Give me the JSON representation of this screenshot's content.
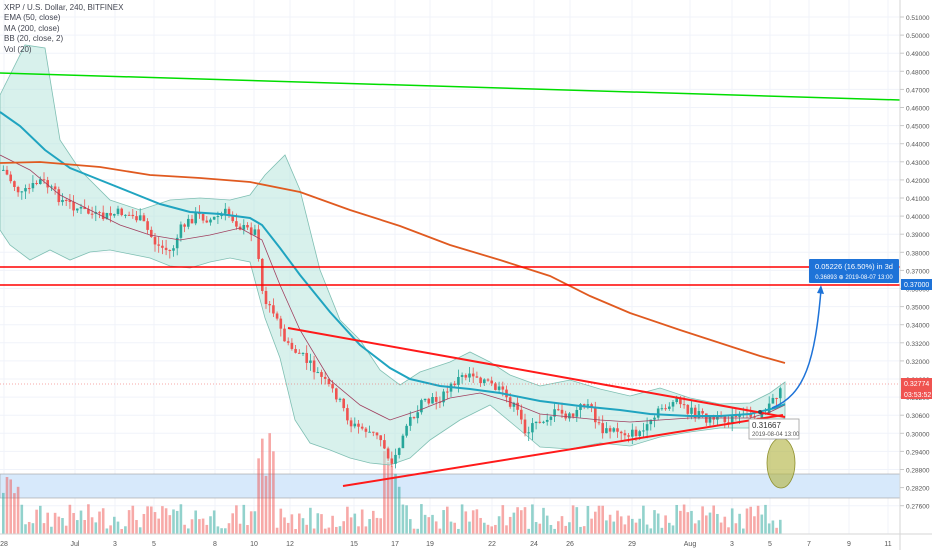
{
  "legend": {
    "symbol": "XRP / U.S. Dollar, 240, BITFINEX",
    "ema": "EMA (50, close)",
    "ma": "MA (200, close)",
    "bb": "BB (20, close, 2)",
    "vol": "Vol (20)"
  },
  "price_axis": {
    "ticks": [
      "0.51000",
      "0.50000",
      "0.49000",
      "0.48000",
      "0.47000",
      "0.46000",
      "0.45000",
      "0.44000",
      "0.43000",
      "0.42000",
      "0.41000",
      "0.40000",
      "0.39000",
      "0.38000",
      "0.37000",
      "0.36000",
      "0.35000",
      "0.34000",
      "0.33200",
      "0.32000",
      "0.31800",
      "0.31200",
      "0.30600",
      "0.30000",
      "0.29400",
      "0.28800",
      "0.28200",
      "0.27600"
    ],
    "last_price": "0.32774",
    "countdown": "03:53:52"
  },
  "time_axis": [
    "28",
    "Jul",
    "3",
    "5",
    "8",
    "10",
    "12",
    "15",
    "17",
    "19",
    "22",
    "24",
    "26",
    "29",
    "Aug",
    "3",
    "5",
    "7",
    "9",
    "11"
  ],
  "measure_label": {
    "line1": "0.05226 (16.50%) in 3d",
    "line2": "0.36893  ⊕ 2019-08-07  13:00"
  },
  "cursor_label": {
    "price": "0.31667",
    "time": "2019-08-04 13:00"
  },
  "colors": {
    "up": "#26a69a",
    "down": "#ef5350",
    "ema": "#20a4c0",
    "ma": "#e05a20",
    "bb_fill": "#b8e6dd",
    "bb_line": "#7fbfb3",
    "support": "#ff0000",
    "green_line": "#00dd00",
    "arrow": "#1e73d8"
  },
  "chart_data": {
    "type": "candlestick",
    "title": "XRP / U.S. Dollar, 240, BITFINEX",
    "indicators": [
      "EMA (50, close)",
      "MA (200, close)",
      "BB (20, close, 2)",
      "Vol (20)"
    ],
    "y_range": [
      0.27,
      0.52
    ],
    "note_series": [
      {
        "name": "EMA (50, close)",
        "points": [
          [
            "Jun 27",
            0.415
          ],
          [
            "Jul 1",
            0.395
          ],
          [
            "Jul 5",
            0.385
          ],
          [
            "Jul 10",
            0.381
          ],
          [
            "Jul 13",
            0.352
          ],
          [
            "Jul 16",
            0.337
          ],
          [
            "Jul 19",
            0.331
          ],
          [
            "Jul 22",
            0.327
          ],
          [
            "Jul 26",
            0.323
          ],
          [
            "Jul 29",
            0.318
          ],
          [
            "Aug 1",
            0.317
          ],
          [
            "Aug 5",
            0.318
          ]
        ]
      },
      {
        "name": "MA (200, close)",
        "points": [
          [
            "Jun 27",
            0.43
          ],
          [
            "Jul 1",
            0.432
          ],
          [
            "Jul 5",
            0.428
          ],
          [
            "Jul 10",
            0.424
          ],
          [
            "Jul 15",
            0.408
          ],
          [
            "Jul 20",
            0.39
          ],
          [
            "Jul 25",
            0.371
          ],
          [
            "Jul 30",
            0.352
          ],
          [
            "Aug 5",
            0.336
          ]
        ]
      }
    ],
    "levels": [
      0.3775,
      0.3695
    ],
    "last_price": 0.32774,
    "projection": {
      "change": 0.05226,
      "percent": 16.5,
      "target": 0.36893,
      "date": "2019-08-07 13:00"
    }
  }
}
